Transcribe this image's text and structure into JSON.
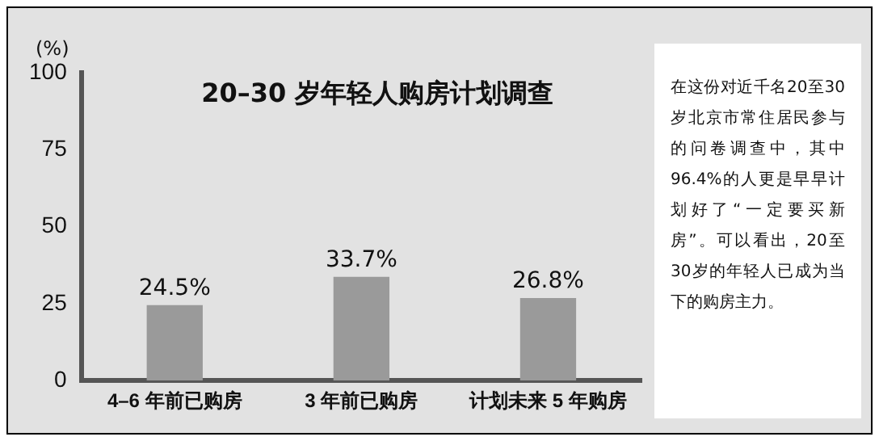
{
  "chart_data": {
    "type": "bar",
    "title": "20–30 岁年轻人购房计划调查",
    "ylabel": "(%)",
    "categories": [
      "4–6 年前已购房",
      "3 年前已购房",
      "计划未来 5 年购房"
    ],
    "values": [
      24.5,
      33.7,
      26.8
    ],
    "color": "#9a9a9a",
    "value_labels": [
      "24.5%",
      "33.7%",
      "26.8%"
    ],
    "ylim": [
      0,
      100
    ],
    "yticks": [
      0,
      25,
      50,
      75,
      100
    ],
    "grid": false,
    "legend": false,
    "annotations": [
      "在这份对近千名20至30岁北京市常住居民参与的问卷调查中，其中96.4%的人更是早早计划好了“一定要买新房”。可以看出，20至30岁的年轻人已成为当下的购房主力。"
    ]
  }
}
